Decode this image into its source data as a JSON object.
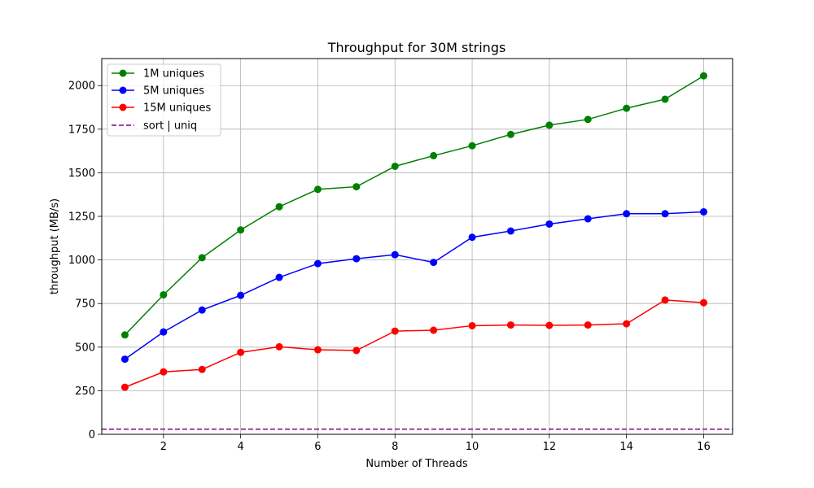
{
  "chart_data": {
    "type": "line",
    "title": "Throughput for 30M strings",
    "xlabel": "Number of Threads",
    "ylabel": "throughput (MB/s)",
    "xlim": [
      0.4,
      16.75
    ],
    "ylim": [
      0,
      2155
    ],
    "xticks": [
      2,
      4,
      6,
      8,
      10,
      12,
      14,
      16
    ],
    "yticks": [
      0,
      250,
      500,
      750,
      1000,
      1250,
      1500,
      1750,
      2000
    ],
    "grid": true,
    "legend_position": "top-left",
    "x": [
      1,
      2,
      3,
      4,
      5,
      6,
      7,
      8,
      9,
      10,
      11,
      12,
      13,
      14,
      15,
      16
    ],
    "series": [
      {
        "name": "1M uniques",
        "color": "#008000",
        "marker": "circle",
        "values": [
          570,
          800,
          1013,
          1172,
          1305,
          1405,
          1420,
          1537,
          1598,
          1655,
          1720,
          1773,
          1806,
          1870,
          1922,
          2056
        ]
      },
      {
        "name": "5M uniques",
        "color": "#0000ff",
        "marker": "circle",
        "values": [
          431,
          587,
          713,
          797,
          900,
          979,
          1007,
          1030,
          986,
          1130,
          1166,
          1206,
          1236,
          1265,
          1265,
          1276
        ]
      },
      {
        "name": "15M uniques",
        "color": "#ff0000",
        "marker": "circle",
        "values": [
          270,
          358,
          372,
          470,
          502,
          485,
          481,
          592,
          597,
          623,
          627,
          625,
          627,
          634,
          770,
          755
        ]
      }
    ],
    "reference_lines": [
      {
        "name": "sort | uniq",
        "color": "#800080",
        "style": "dashed",
        "y": 30
      }
    ]
  }
}
